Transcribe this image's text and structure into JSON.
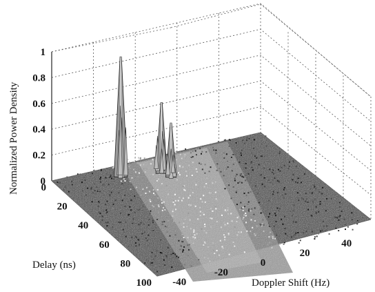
{
  "chart_data": {
    "type": "surface3d",
    "xlabel": "Doppler Shift (Hz)",
    "ylabel": "Delay (ns)",
    "zlabel": "Normalized Power Density",
    "x_ticks": [
      "-40",
      "-20",
      "0",
      "20",
      "40"
    ],
    "y_ticks": [
      "0",
      "20",
      "40",
      "60",
      "80",
      "100"
    ],
    "z_ticks": [
      "0",
      "0.2",
      "0.4",
      "0.6",
      "0.8",
      "1"
    ],
    "xlim": [
      -50,
      50
    ],
    "ylim": [
      0,
      100
    ],
    "zlim": [
      0,
      1
    ],
    "grid": true,
    "peaks": [
      {
        "doppler_hz": -22,
        "delay_ns": 10,
        "power": 0.93
      },
      {
        "doppler_hz": -5,
        "delay_ns": 15,
        "power": 0.55
      },
      {
        "doppler_hz": -3,
        "delay_ns": 20,
        "power": 0.42
      }
    ],
    "spread_doppler_hz": [
      -25,
      10
    ],
    "noise_floor": 0.05
  }
}
